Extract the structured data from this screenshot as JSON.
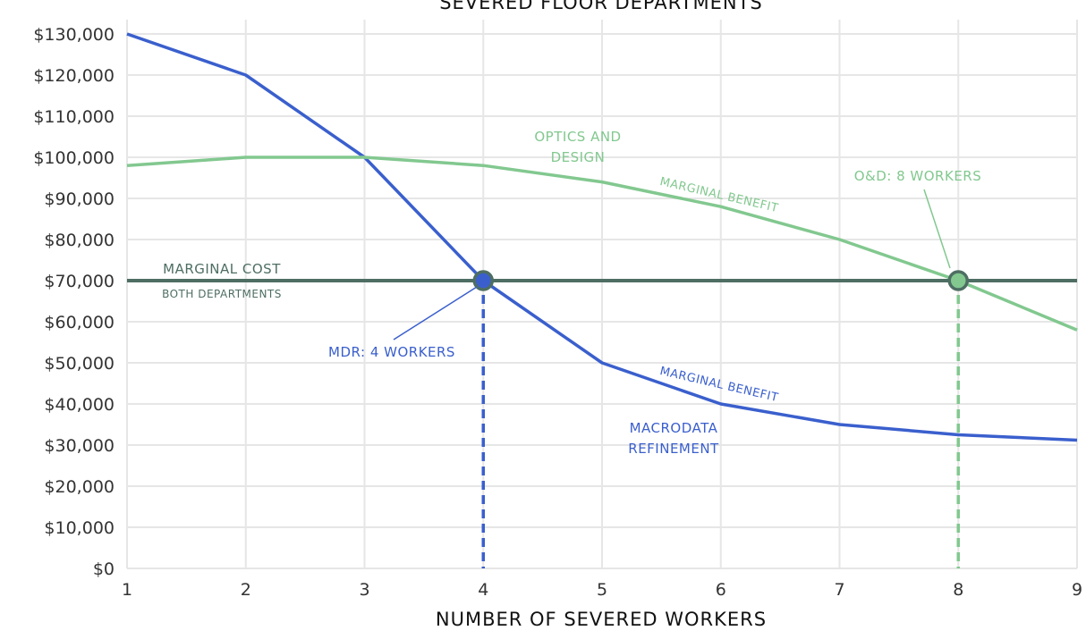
{
  "chart_data": {
    "type": "line",
    "title": "SEVERED FLOOR DEPARTMENTS",
    "xlabel": "NUMBER OF SEVERED WORKERS",
    "ylabel": "",
    "x": [
      1,
      2,
      3,
      4,
      5,
      6,
      7,
      8,
      9
    ],
    "xlim": [
      1,
      9
    ],
    "ylim": [
      0,
      130000
    ],
    "y_ticks": [
      0,
      10000,
      20000,
      30000,
      40000,
      50000,
      60000,
      70000,
      80000,
      90000,
      100000,
      110000,
      120000,
      130000
    ],
    "y_tick_labels": [
      "$0",
      "$10,000",
      "$20,000",
      "$30,000",
      "$40,000",
      "$50,000",
      "$60,000",
      "$70,000",
      "$80,000",
      "$90,000",
      "$100,000",
      "$110,000",
      "$120,000",
      "$130,000"
    ],
    "x_tick_labels": [
      "1",
      "2",
      "3",
      "4",
      "5",
      "6",
      "7",
      "8",
      "9"
    ],
    "grid": true,
    "series": [
      {
        "key": "mdr",
        "values": [
          130000,
          120000,
          100000,
          70000,
          50000,
          40000,
          35000,
          32500,
          31200
        ],
        "color": "#3a5fcd"
      },
      {
        "key": "od",
        "values": [
          98000,
          100000,
          100000,
          98000,
          94000,
          88000,
          80000,
          70000,
          58000
        ],
        "color": "#82c88f"
      },
      {
        "key": "cost",
        "values": [
          70000,
          70000,
          70000,
          70000,
          70000,
          70000,
          70000,
          70000,
          70000
        ],
        "color": "#4e6e63"
      }
    ],
    "annotations": {
      "cost_line1": "MARGINAL COST",
      "cost_line2": "BOTH DEPARTMENTS",
      "od_name_1": "OPTICS AND",
      "od_name_2": "DESIGN",
      "od_benefit": "MARGINAL BENEFIT",
      "od_point_label": "O&D: 8 WORKERS",
      "mdr_benefit": "MARGINAL BENEFIT",
      "mdr_name_1": "MACRODATA",
      "mdr_name_2": "REFINEMENT",
      "mdr_point_label": "MDR: 4 WORKERS"
    },
    "intersections": [
      {
        "key": "mdr",
        "x": 4,
        "y": 70000
      },
      {
        "key": "od",
        "x": 8,
        "y": 70000
      }
    ]
  },
  "colors": {
    "mdr": "#3a5fcd",
    "od": "#82c88f",
    "cost": "#4e6e63",
    "grid": "#e6e6e6"
  }
}
